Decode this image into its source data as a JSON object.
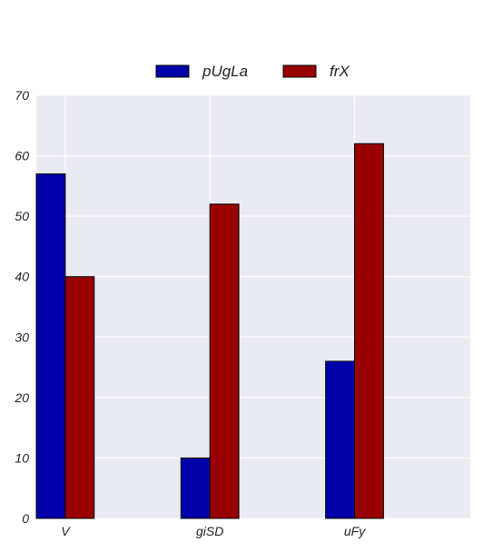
{
  "chart_data": {
    "type": "bar",
    "title": "",
    "xlabel": "",
    "ylabel": "",
    "categories": [
      "V",
      "giSD",
      "uFy"
    ],
    "series": [
      {
        "name": "pUgLa",
        "color": "#0000aa",
        "values": [
          57,
          10,
          26
        ]
      },
      {
        "name": "frX",
        "color": "#990000",
        "values": [
          40,
          52,
          62
        ]
      }
    ],
    "ylim": [
      0,
      70
    ],
    "yticks": [
      "0",
      "10",
      "20",
      "30",
      "40",
      "50",
      "60",
      "70"
    ],
    "grid": true,
    "legend_position": "top-center",
    "background_color": "#eaeaf2"
  }
}
